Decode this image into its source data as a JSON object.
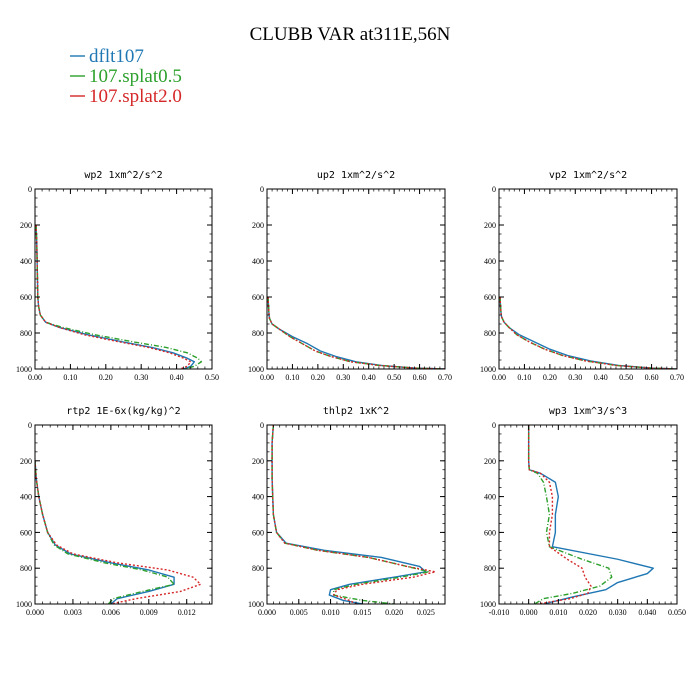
{
  "title": "CLUBB VAR at311E,56N",
  "legend": [
    {
      "label": "dflt107",
      "color": "#1f77b4",
      "dash": "solid"
    },
    {
      "label": "107.splat0.5",
      "color": "#2ca02c",
      "dash": "dashdot"
    },
    {
      "label": "107.splat2.0",
      "color": "#d62728",
      "dash": "dot"
    }
  ],
  "chart_data": [
    {
      "type": "line",
      "title": "wp2  1xm^2/s^2",
      "xlim": [
        0,
        0.5
      ],
      "ylim": [
        1000,
        0
      ],
      "xticks": [
        0.0,
        0.1,
        0.2,
        0.3,
        0.4,
        0.5
      ],
      "xtick_labels": [
        "0.00",
        "0.10",
        "0.20",
        "0.30",
        "0.40",
        "0.50"
      ],
      "yticks": [
        0,
        200,
        400,
        600,
        800,
        1000
      ],
      "ytick_labels": [
        "0",
        "200",
        "400",
        "600",
        "800",
        "1000"
      ],
      "series": [
        {
          "name": "dflt107",
          "x": [
            0.003,
            0.005,
            0.006,
            0.007,
            0.008,
            0.01,
            0.015,
            0.03,
            0.07,
            0.15,
            0.25,
            0.33,
            0.39,
            0.43,
            0.45,
            0.44,
            0.42
          ],
          "y": [
            200,
            300,
            400,
            500,
            600,
            650,
            700,
            740,
            770,
            810,
            850,
            880,
            910,
            940,
            960,
            985,
            1000
          ]
        },
        {
          "name": "107.splat0.5",
          "x": [
            0.003,
            0.005,
            0.006,
            0.007,
            0.008,
            0.01,
            0.015,
            0.03,
            0.08,
            0.17,
            0.28,
            0.37,
            0.43,
            0.46,
            0.47,
            0.45,
            0.42
          ],
          "y": [
            200,
            300,
            400,
            500,
            600,
            650,
            700,
            740,
            770,
            810,
            850,
            880,
            910,
            940,
            960,
            985,
            1000
          ]
        },
        {
          "name": "107.splat2.0",
          "x": [
            0.003,
            0.005,
            0.006,
            0.007,
            0.008,
            0.01,
            0.015,
            0.03,
            0.07,
            0.14,
            0.24,
            0.32,
            0.38,
            0.42,
            0.44,
            0.43,
            0.41
          ],
          "y": [
            200,
            300,
            400,
            500,
            600,
            650,
            700,
            740,
            770,
            810,
            850,
            880,
            910,
            940,
            960,
            985,
            1000
          ]
        }
      ]
    },
    {
      "type": "line",
      "title": "up2  1xm^2/s^2",
      "xlim": [
        0,
        0.7
      ],
      "ylim": [
        1000,
        0
      ],
      "xticks": [
        0.0,
        0.1,
        0.2,
        0.3,
        0.4,
        0.5,
        0.6,
        0.7
      ],
      "xtick_labels": [
        "0.00",
        "0.10",
        "0.20",
        "0.30",
        "0.40",
        "0.50",
        "0.60",
        "0.70"
      ],
      "yticks": [
        0,
        200,
        400,
        600,
        800,
        1000
      ],
      "ytick_labels": [
        "0",
        "200",
        "400",
        "600",
        "800",
        "1000"
      ],
      "series": [
        {
          "name": "dflt107",
          "x": [
            0.004,
            0.006,
            0.008,
            0.01,
            0.02,
            0.05,
            0.1,
            0.16,
            0.21,
            0.27,
            0.35,
            0.45,
            0.58,
            0.7
          ],
          "y": [
            600,
            650,
            700,
            720,
            750,
            780,
            820,
            860,
            900,
            930,
            960,
            980,
            995,
            1000
          ]
        },
        {
          "name": "107.splat0.5",
          "x": [
            0.004,
            0.006,
            0.008,
            0.01,
            0.02,
            0.05,
            0.09,
            0.14,
            0.19,
            0.25,
            0.33,
            0.44,
            0.58,
            0.7
          ],
          "y": [
            600,
            650,
            700,
            720,
            750,
            780,
            820,
            860,
            900,
            930,
            960,
            980,
            995,
            1000
          ]
        },
        {
          "name": "107.splat2.0",
          "x": [
            0.004,
            0.006,
            0.008,
            0.01,
            0.02,
            0.05,
            0.09,
            0.14,
            0.19,
            0.25,
            0.33,
            0.44,
            0.58,
            0.7
          ],
          "y": [
            600,
            650,
            700,
            720,
            750,
            780,
            820,
            860,
            900,
            930,
            960,
            980,
            995,
            1000
          ]
        }
      ]
    },
    {
      "type": "line",
      "title": "vp2  1xm^2/s^2",
      "xlim": [
        0,
        0.7
      ],
      "ylim": [
        1000,
        0
      ],
      "xticks": [
        0.0,
        0.1,
        0.2,
        0.3,
        0.4,
        0.5,
        0.6,
        0.7
      ],
      "xtick_labels": [
        "0.00",
        "0.10",
        "0.20",
        "0.30",
        "0.40",
        "0.50",
        "0.60",
        "0.70"
      ],
      "yticks": [
        0,
        200,
        400,
        600,
        800,
        1000
      ],
      "ytick_labels": [
        "0",
        "200",
        "400",
        "600",
        "800",
        "1000"
      ],
      "series": [
        {
          "name": "dflt107",
          "x": [
            0.004,
            0.006,
            0.008,
            0.01,
            0.02,
            0.04,
            0.08,
            0.14,
            0.2,
            0.27,
            0.36,
            0.47,
            0.6,
            0.7
          ],
          "y": [
            600,
            650,
            690,
            710,
            740,
            770,
            810,
            850,
            890,
            925,
            955,
            980,
            995,
            1000
          ]
        },
        {
          "name": "107.splat0.5",
          "x": [
            0.004,
            0.006,
            0.008,
            0.01,
            0.02,
            0.04,
            0.07,
            0.12,
            0.18,
            0.25,
            0.34,
            0.46,
            0.6,
            0.7
          ],
          "y": [
            600,
            650,
            690,
            710,
            740,
            770,
            810,
            850,
            890,
            925,
            955,
            980,
            995,
            1000
          ]
        },
        {
          "name": "107.splat2.0",
          "x": [
            0.004,
            0.006,
            0.008,
            0.01,
            0.02,
            0.04,
            0.07,
            0.12,
            0.18,
            0.25,
            0.34,
            0.46,
            0.6,
            0.7
          ],
          "y": [
            600,
            650,
            690,
            710,
            740,
            770,
            810,
            850,
            890,
            925,
            955,
            980,
            995,
            1000
          ]
        }
      ]
    },
    {
      "type": "line",
      "title": "rtp2  1E-6x(kg/kg)^2",
      "xlim": [
        0,
        0.014
      ],
      "ylim": [
        1000,
        0
      ],
      "xticks": [
        0.0,
        0.003,
        0.006,
        0.009,
        0.012
      ],
      "xtick_labels": [
        "0.000",
        "0.003",
        "0.006",
        "0.009",
        "0.012"
      ],
      "yticks": [
        0,
        200,
        400,
        600,
        800,
        1000
      ],
      "ytick_labels": [
        "0",
        "200",
        "400",
        "600",
        "800",
        "1000"
      ],
      "series": [
        {
          "name": "dflt107",
          "x": [
            0.0,
            0.0001,
            0.0003,
            0.0006,
            0.001,
            0.0016,
            0.0028,
            0.006,
            0.009,
            0.011,
            0.011,
            0.009,
            0.0065,
            0.006
          ],
          "y": [
            200,
            300,
            400,
            500,
            600,
            670,
            720,
            770,
            810,
            850,
            890,
            930,
            970,
            1000
          ]
        },
        {
          "name": "107.splat0.5",
          "x": [
            0.0,
            0.0001,
            0.0003,
            0.0006,
            0.001,
            0.0015,
            0.0026,
            0.0055,
            0.0085,
            0.0105,
            0.011,
            0.0085,
            0.0062,
            0.0058
          ],
          "y": [
            200,
            300,
            400,
            500,
            600,
            670,
            720,
            770,
            810,
            850,
            890,
            930,
            970,
            1000
          ]
        },
        {
          "name": "107.splat2.0",
          "x": [
            0.0,
            0.0001,
            0.0003,
            0.0006,
            0.001,
            0.0017,
            0.003,
            0.0065,
            0.0105,
            0.0125,
            0.0131,
            0.0115,
            0.008,
            0.006
          ],
          "y": [
            200,
            300,
            400,
            500,
            600,
            670,
            720,
            770,
            810,
            850,
            890,
            930,
            970,
            1000
          ]
        }
      ]
    },
    {
      "type": "line",
      "title": "thlp2  1xK^2",
      "xlim": [
        0,
        0.028
      ],
      "ylim": [
        1000,
        0
      ],
      "xticks": [
        0.0,
        0.005,
        0.01,
        0.015,
        0.02,
        0.025
      ],
      "xtick_labels": [
        "0.000",
        "0.005",
        "0.010",
        "0.015",
        "0.020",
        "0.025"
      ],
      "yticks": [
        0,
        200,
        400,
        600,
        800,
        1000
      ],
      "ytick_labels": [
        "0",
        "200",
        "400",
        "600",
        "800",
        "1000"
      ],
      "series": [
        {
          "name": "dflt107",
          "x": [
            0.001,
            0.0008,
            0.0008,
            0.001,
            0.0015,
            0.003,
            0.009,
            0.018,
            0.024,
            0.025,
            0.02,
            0.013,
            0.01,
            0.0098,
            0.012,
            0.015
          ],
          "y": [
            0,
            100,
            300,
            500,
            600,
            660,
            700,
            740,
            790,
            820,
            850,
            890,
            920,
            950,
            980,
            1000
          ]
        },
        {
          "name": "107.splat0.5",
          "x": [
            0.001,
            0.0008,
            0.0008,
            0.001,
            0.0015,
            0.0028,
            0.008,
            0.016,
            0.022,
            0.0255,
            0.021,
            0.014,
            0.0105,
            0.0105,
            0.015,
            0.02
          ],
          "y": [
            0,
            100,
            300,
            500,
            600,
            660,
            700,
            740,
            790,
            820,
            850,
            890,
            920,
            950,
            980,
            1000
          ]
        },
        {
          "name": "107.splat2.0",
          "x": [
            0.001,
            0.0008,
            0.0008,
            0.001,
            0.0015,
            0.0028,
            0.008,
            0.016,
            0.022,
            0.0265,
            0.023,
            0.015,
            0.011,
            0.0105,
            0.013,
            0.014
          ],
          "y": [
            0,
            100,
            300,
            500,
            600,
            660,
            700,
            740,
            790,
            820,
            850,
            890,
            920,
            950,
            980,
            1000
          ]
        }
      ]
    },
    {
      "type": "line",
      "title": "wp3  1xm^3/s^3",
      "xlim": [
        -0.01,
        0.05
      ],
      "ylim": [
        1000,
        0
      ],
      "xticks": [
        -0.01,
        0.0,
        0.01,
        0.02,
        0.03,
        0.04,
        0.05
      ],
      "xtick_labels": [
        "-0.010",
        "0.000",
        "0.010",
        "0.020",
        "0.030",
        "0.040",
        "0.050"
      ],
      "yticks": [
        0,
        200,
        400,
        600,
        800,
        1000
      ],
      "ytick_labels": [
        "0",
        "200",
        "400",
        "600",
        "800",
        "1000"
      ],
      "series": [
        {
          "name": "dflt107",
          "x": [
            0.0,
            0.0,
            0.0002,
            0.004,
            0.009,
            0.01,
            0.009,
            0.009,
            0.008,
            0.03,
            0.042,
            0.04,
            0.03,
            0.026,
            0.015,
            0.005
          ],
          "y": [
            0,
            200,
            250,
            270,
            320,
            400,
            500,
            600,
            680,
            750,
            800,
            830,
            880,
            920,
            960,
            1000
          ]
        },
        {
          "name": "107.splat0.5",
          "x": [
            0.0,
            0.0,
            0.0002,
            0.003,
            0.005,
            0.006,
            0.007,
            0.006,
            0.007,
            0.018,
            0.027,
            0.028,
            0.024,
            0.015,
            0.005,
            0.002
          ],
          "y": [
            0,
            200,
            250,
            270,
            320,
            400,
            500,
            600,
            680,
            750,
            800,
            850,
            900,
            940,
            970,
            1000
          ]
        },
        {
          "name": "107.splat2.0",
          "x": [
            0.0,
            0.0,
            0.0002,
            0.004,
            0.007,
            0.008,
            0.008,
            0.007,
            0.007,
            0.013,
            0.018,
            0.019,
            0.021,
            0.02,
            0.014,
            0.003
          ],
          "y": [
            0,
            200,
            250,
            270,
            320,
            400,
            500,
            600,
            680,
            750,
            800,
            850,
            900,
            940,
            970,
            1000
          ]
        }
      ]
    }
  ]
}
